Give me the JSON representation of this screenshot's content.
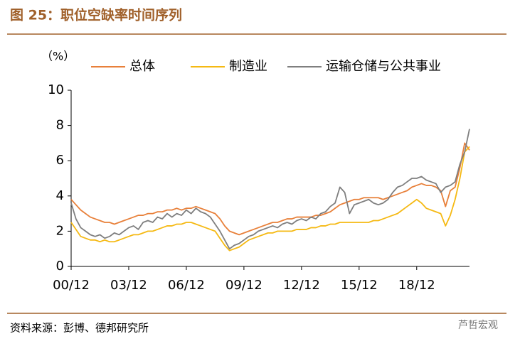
{
  "chart_data": {
    "type": "line",
    "title": "图 25：职位空缺率时间序列",
    "y_label": "（%）",
    "source": "资料来源：彭博、德邦研究所",
    "watermark": "芦哲宏观",
    "x": [
      "00/12",
      "01/03",
      "01/06",
      "01/09",
      "01/12",
      "02/03",
      "02/06",
      "02/09",
      "02/12",
      "03/03",
      "03/06",
      "03/09",
      "03/12",
      "04/03",
      "04/06",
      "04/09",
      "04/12",
      "05/03",
      "05/06",
      "05/09",
      "05/12",
      "06/03",
      "06/06",
      "06/09",
      "06/12",
      "07/03",
      "07/06",
      "07/09",
      "07/12",
      "08/03",
      "08/06",
      "08/09",
      "08/12",
      "09/03",
      "09/06",
      "09/09",
      "09/12",
      "10/03",
      "10/06",
      "10/09",
      "10/12",
      "11/03",
      "11/06",
      "11/09",
      "11/12",
      "12/03",
      "12/06",
      "12/09",
      "12/12",
      "13/03",
      "13/06",
      "13/09",
      "13/12",
      "14/03",
      "14/06",
      "14/09",
      "14/12",
      "15/03",
      "15/06",
      "15/09",
      "15/12",
      "16/03",
      "16/06",
      "16/09",
      "16/12",
      "17/03",
      "17/06",
      "17/09",
      "17/12",
      "18/03",
      "18/06",
      "18/09",
      "18/12",
      "19/03",
      "19/06",
      "19/09",
      "19/12",
      "20/03",
      "20/06",
      "20/09",
      "20/12",
      "21/03",
      "21/06",
      "21/09"
    ],
    "xticks": [
      "00/12",
      "03/12",
      "06/12",
      "09/12",
      "12/12",
      "15/12",
      "18/12"
    ],
    "ylim": [
      0,
      10
    ],
    "yticks": [
      0,
      2,
      4,
      6,
      8,
      10
    ],
    "legend": "top",
    "series": [
      {
        "name": "总体",
        "color": "#e8803a",
        "values": [
          3.8,
          3.5,
          3.2,
          3.0,
          2.8,
          2.7,
          2.6,
          2.5,
          2.5,
          2.4,
          2.5,
          2.6,
          2.7,
          2.8,
          2.9,
          2.9,
          3.0,
          3.0,
          3.1,
          3.1,
          3.2,
          3.2,
          3.3,
          3.2,
          3.3,
          3.3,
          3.4,
          3.3,
          3.2,
          3.1,
          3.0,
          2.7,
          2.3,
          2.0,
          1.9,
          1.8,
          1.9,
          2.0,
          2.1,
          2.2,
          2.3,
          2.4,
          2.5,
          2.5,
          2.6,
          2.7,
          2.7,
          2.8,
          2.8,
          2.8,
          2.8,
          2.9,
          2.9,
          3.0,
          3.1,
          3.3,
          3.5,
          3.6,
          3.7,
          3.8,
          3.8,
          3.9,
          3.9,
          3.9,
          3.9,
          3.8,
          3.9,
          4.0,
          4.1,
          4.2,
          4.3,
          4.5,
          4.6,
          4.7,
          4.6,
          4.6,
          4.5,
          4.3,
          3.4,
          4.3,
          4.5,
          5.6,
          7.0,
          6.6
        ]
      },
      {
        "name": "制造业",
        "color": "#f5b913",
        "values": [
          2.5,
          2.1,
          1.7,
          1.6,
          1.5,
          1.5,
          1.4,
          1.5,
          1.4,
          1.4,
          1.5,
          1.6,
          1.7,
          1.8,
          1.8,
          1.9,
          2.0,
          2.0,
          2.1,
          2.2,
          2.3,
          2.3,
          2.4,
          2.4,
          2.5,
          2.5,
          2.4,
          2.3,
          2.2,
          2.1,
          2.0,
          1.6,
          1.2,
          0.9,
          1.0,
          1.1,
          1.3,
          1.5,
          1.6,
          1.7,
          1.8,
          1.9,
          1.9,
          2.0,
          2.0,
          2.0,
          2.0,
          2.1,
          2.1,
          2.1,
          2.2,
          2.2,
          2.3,
          2.3,
          2.4,
          2.4,
          2.5,
          2.5,
          2.5,
          2.5,
          2.5,
          2.5,
          2.5,
          2.6,
          2.6,
          2.7,
          2.8,
          2.9,
          3.0,
          3.2,
          3.4,
          3.6,
          3.8,
          3.6,
          3.3,
          3.2,
          3.1,
          3.0,
          2.3,
          2.9,
          3.8,
          5.0,
          6.5,
          6.8
        ]
      },
      {
        "name": "运输仓储与公共事业",
        "color": "#7f7f7f",
        "values": [
          3.6,
          2.7,
          2.2,
          2.0,
          1.8,
          1.7,
          1.8,
          1.6,
          1.7,
          1.9,
          1.8,
          2.0,
          2.2,
          2.3,
          2.1,
          2.5,
          2.6,
          2.5,
          2.8,
          2.7,
          3.0,
          2.8,
          3.0,
          2.9,
          3.2,
          3.0,
          3.3,
          3.1,
          3.0,
          2.8,
          2.4,
          2.0,
          1.5,
          1.0,
          1.2,
          1.3,
          1.5,
          1.7,
          1.8,
          2.0,
          2.1,
          2.2,
          2.3,
          2.2,
          2.4,
          2.5,
          2.4,
          2.6,
          2.7,
          2.6,
          2.8,
          2.7,
          3.0,
          3.1,
          3.4,
          3.6,
          4.5,
          4.2,
          3.0,
          3.5,
          3.6,
          3.7,
          3.8,
          3.6,
          3.5,
          3.6,
          3.8,
          4.2,
          4.5,
          4.6,
          4.8,
          5.0,
          5.0,
          5.1,
          4.9,
          4.8,
          4.7,
          4.2,
          4.5,
          4.6,
          4.8,
          5.8,
          6.5,
          7.8
        ]
      }
    ]
  }
}
